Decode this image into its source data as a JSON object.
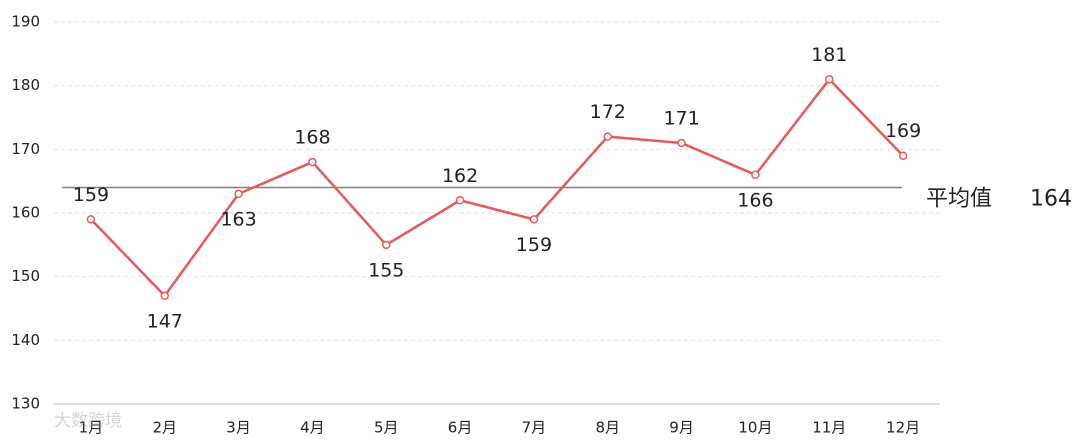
{
  "chart_data": {
    "type": "line",
    "categories": [
      "1月",
      "2月",
      "3月",
      "4月",
      "5月",
      "6月",
      "7月",
      "8月",
      "9月",
      "10月",
      "11月",
      "12月"
    ],
    "series": [
      {
        "name": null,
        "color": "#e8595a",
        "values": [
          159,
          147,
          163,
          168,
          155,
          162,
          159,
          172,
          171,
          166,
          181,
          169
        ]
      }
    ],
    "ylim": [
      130,
      190
    ],
    "yticks": [
      130,
      140,
      150,
      160,
      170,
      180,
      190
    ],
    "grid": true,
    "average": 164,
    "average_label": "平均值",
    "average_color": "#808080",
    "watermark": "大数跨境"
  }
}
